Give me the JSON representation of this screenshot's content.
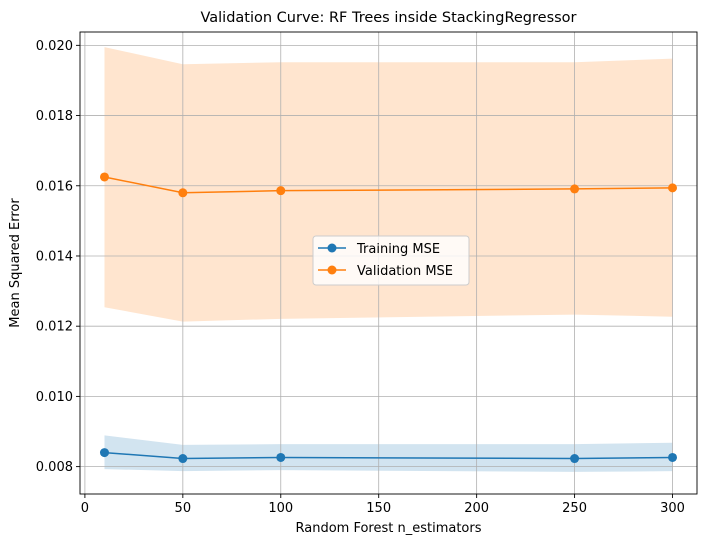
{
  "chart_data": {
    "type": "line",
    "title": "Validation Curve: RF Trees inside StackingRegressor",
    "xlabel": "Random Forest n_estimators",
    "ylabel": "Mean Squared Error",
    "x": [
      10,
      50,
      100,
      250,
      300
    ],
    "xlim": [
      -2.5,
      312.5
    ],
    "ylim": [
      0.00722,
      0.02038
    ],
    "xticks": [
      0,
      50,
      100,
      150,
      200,
      250,
      300
    ],
    "yticks": [
      0.008,
      0.01,
      0.012,
      0.014,
      0.016,
      0.018,
      0.02
    ],
    "xtick_labels": [
      "0",
      "50",
      "100",
      "150",
      "200",
      "250",
      "300"
    ],
    "ytick_labels": [
      "0.008",
      "0.010",
      "0.012",
      "0.014",
      "0.016",
      "0.018",
      "0.020"
    ],
    "grid": true,
    "legend_position": "center",
    "series": [
      {
        "name": "Training MSE",
        "color": "#1f77b4",
        "values": [
          0.0084,
          0.00823,
          0.00826,
          0.00823,
          0.00826
        ],
        "band_lower": [
          0.00793,
          0.00787,
          0.0079,
          0.00785,
          0.00787
        ],
        "band_upper": [
          0.00889,
          0.00862,
          0.00864,
          0.00864,
          0.00868
        ]
      },
      {
        "name": "Validation MSE",
        "color": "#ff7f0e",
        "values": [
          0.01625,
          0.0158,
          0.01586,
          0.01591,
          0.01594
        ],
        "band_lower": [
          0.01254,
          0.01213,
          0.01221,
          0.01233,
          0.01227
        ],
        "band_upper": [
          0.01995,
          0.01946,
          0.01952,
          0.01952,
          0.01962
        ]
      }
    ]
  }
}
